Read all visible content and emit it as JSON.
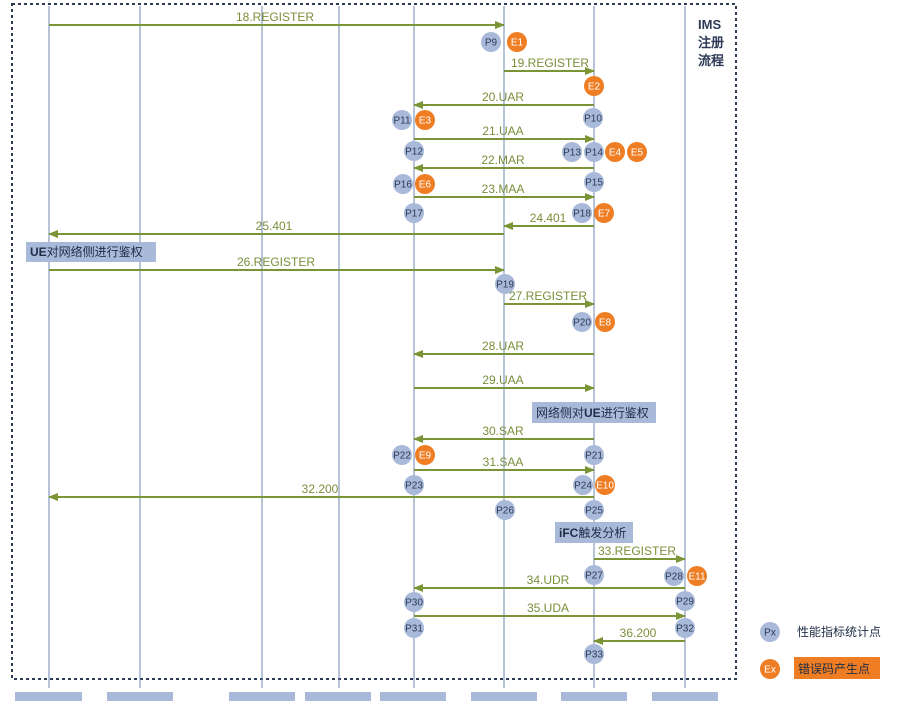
{
  "title_lines": [
    "IMS",
    "注册",
    "流程"
  ],
  "colors": {
    "lifeline": "#6e87b3",
    "arrow": "#7a9436",
    "arrow_text": "#7a8f3a",
    "point": "#a9b9d9",
    "error": "#ee7d23",
    "note_bg": "#a9b9d9",
    "frame": "#2d3b57"
  },
  "lifelines": [
    "L1",
    "L2",
    "L3",
    "L4",
    "L5",
    "L6",
    "L7",
    "L8"
  ],
  "messages": [
    {
      "label": "18.REGISTER",
      "from": "L1",
      "to": "L6"
    },
    {
      "label": "19.REGISTER",
      "from": "L6",
      "to": "L7"
    },
    {
      "label": "20.UAR",
      "from": "L7",
      "to": "L5"
    },
    {
      "label": "21.UAA",
      "from": "L5",
      "to": "L7"
    },
    {
      "label": "22.MAR",
      "from": "L7",
      "to": "L5"
    },
    {
      "label": "23.MAA",
      "from": "L5",
      "to": "L7"
    },
    {
      "label": "24.401",
      "from": "L7",
      "to": "L6"
    },
    {
      "label": "25.401",
      "from": "L6",
      "to": "L1"
    },
    {
      "label": "26.REGISTER",
      "from": "L1",
      "to": "L6"
    },
    {
      "label": "27.REGISTER",
      "from": "L6",
      "to": "L7"
    },
    {
      "label": "28.UAR",
      "from": "L7",
      "to": "L5"
    },
    {
      "label": "29.UAA",
      "from": "L5",
      "to": "L7"
    },
    {
      "label": "30.SAR",
      "from": "L7",
      "to": "L5"
    },
    {
      "label": "31.SAA",
      "from": "L5",
      "to": "L7"
    },
    {
      "label": "32.200",
      "from": "L7",
      "to": "L1"
    },
    {
      "label": "33.REGISTER",
      "from": "L7",
      "to": "L8"
    },
    {
      "label": "34.UDR",
      "from": "L8",
      "to": "L5"
    },
    {
      "label": "35.UDA",
      "from": "L5",
      "to": "L8"
    },
    {
      "label": "36.200",
      "from": "L8",
      "to": "L7"
    }
  ],
  "points": [
    "P9",
    "P10",
    "P11",
    "P12",
    "P13",
    "P14",
    "P15",
    "P16",
    "P17",
    "P18",
    "P19",
    "P20",
    "P21",
    "P22",
    "P23",
    "P24",
    "P25",
    "P26",
    "P27",
    "P28",
    "P29",
    "P30",
    "P31",
    "P32",
    "P33"
  ],
  "errors": [
    "E1",
    "E2",
    "E3",
    "E4",
    "E5",
    "E6",
    "E7",
    "E8",
    "E9",
    "E10",
    "E11"
  ],
  "notes": [
    {
      "pre": "UE",
      "post": "对网络侧进行鉴权"
    },
    {
      "pre": "网络侧对",
      "mid": "UE",
      "post": "进行鉴权"
    },
    {
      "pre": "iFC",
      "post": "触发分析"
    }
  ],
  "legend": {
    "point_symbol": "Px",
    "point_label": "性能指标统计点",
    "error_symbol": "Ex",
    "error_label": "错误码产生点"
  }
}
